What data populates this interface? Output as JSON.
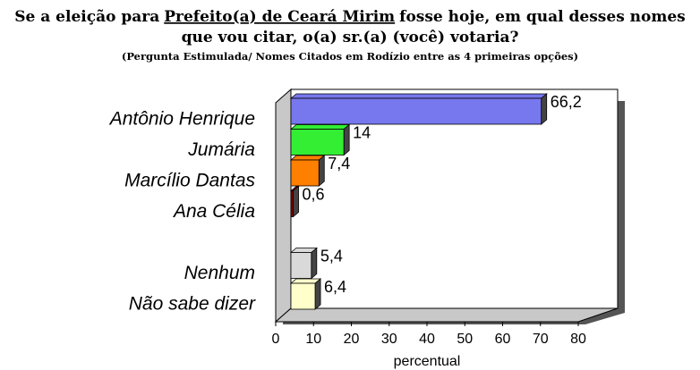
{
  "chart_data": {
    "type": "bar",
    "title": [
      "Se a eleição para",
      "Prefeito(a) de Ceará Mirim",
      "fosse hoje, em qual desses nomes",
      "que vou citar, o(a) sr.(a) (você) votaria?"
    ],
    "subtitle": "(Pergunta Estimulada/ Nomes Citados em Rodízio entre as 4 primeiras opções)",
    "categories": [
      "Antônio Henrique",
      "Jumária",
      "Marcílio Dantas",
      "Ana Célia",
      null,
      "Nenhum",
      "Não sabe dizer"
    ],
    "values": [
      66.2,
      14,
      7.4,
      0.6,
      null,
      5.4,
      6.4
    ],
    "value_labels": [
      "66,2",
      "14",
      "7,4",
      "0,6",
      null,
      "5,4",
      "6,4"
    ],
    "colors": [
      "#7777ee",
      "#33ee33",
      "#ff7f00",
      "#8b0000",
      null,
      "#d9d9d9",
      "#ffffcc"
    ],
    "xlim": [
      0,
      80
    ],
    "xticks": [
      0,
      10,
      20,
      30,
      40,
      50,
      60,
      70,
      80
    ],
    "xlabel": "percentual",
    "grid": false
  }
}
